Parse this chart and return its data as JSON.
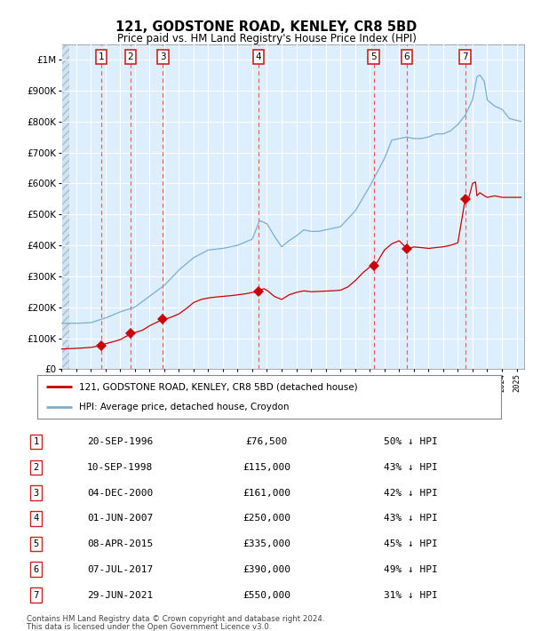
{
  "title": "121, GODSTONE ROAD, KENLEY, CR8 5BD",
  "subtitle": "Price paid vs. HM Land Registry's House Price Index (HPI)",
  "table_rows": [
    {
      "num": 1,
      "date": "20-SEP-1996",
      "price": "£76,500",
      "pct": "50% ↓ HPI"
    },
    {
      "num": 2,
      "date": "10-SEP-1998",
      "price": "£115,000",
      "pct": "43% ↓ HPI"
    },
    {
      "num": 3,
      "date": "04-DEC-2000",
      "price": "£161,000",
      "pct": "42% ↓ HPI"
    },
    {
      "num": 4,
      "date": "01-JUN-2007",
      "price": "£250,000",
      "pct": "43% ↓ HPI"
    },
    {
      "num": 5,
      "date": "08-APR-2015",
      "price": "£335,000",
      "pct": "45% ↓ HPI"
    },
    {
      "num": 6,
      "date": "07-JUL-2017",
      "price": "£390,000",
      "pct": "49% ↓ HPI"
    },
    {
      "num": 7,
      "date": "29-JUN-2021",
      "price": "£550,000",
      "pct": "31% ↓ HPI"
    }
  ],
  "legend_red": "121, GODSTONE ROAD, KENLEY, CR8 5BD (detached house)",
  "legend_blue": "HPI: Average price, detached house, Croydon",
  "footnote1": "Contains HM Land Registry data © Crown copyright and database right 2024.",
  "footnote2": "This data is licensed under the Open Government Licence v3.0.",
  "red_color": "#cc0000",
  "blue_color": "#7aadcf",
  "bg_color": "#ddeeff",
  "dashed_red": "#ff5555",
  "ylim_max": 1050000,
  "hpi_x": [
    1994.0,
    1995.0,
    1996.0,
    1997.0,
    1998.0,
    1999.0,
    2000.0,
    2001.0,
    2002.0,
    2003.0,
    2004.0,
    2005.0,
    2006.0,
    2007.0,
    2007.5,
    2008.0,
    2008.5,
    2009.0,
    2009.5,
    2010.0,
    2010.5,
    2011.0,
    2011.5,
    2012.0,
    2012.5,
    2013.0,
    2014.0,
    2015.0,
    2016.0,
    2016.5,
    2017.0,
    2017.5,
    2018.0,
    2018.5,
    2019.0,
    2019.5,
    2020.0,
    2020.5,
    2021.0,
    2021.5,
    2022.0,
    2022.3,
    2022.5,
    2022.8,
    2023.0,
    2023.5,
    2024.0,
    2024.5,
    2025.3
  ],
  "hpi_y": [
    148000,
    148000,
    150000,
    165000,
    185000,
    200000,
    235000,
    270000,
    320000,
    360000,
    385000,
    390000,
    400000,
    420000,
    480000,
    470000,
    430000,
    395000,
    415000,
    430000,
    450000,
    445000,
    445000,
    450000,
    455000,
    460000,
    510000,
    590000,
    680000,
    740000,
    745000,
    750000,
    745000,
    745000,
    750000,
    760000,
    760000,
    770000,
    790000,
    820000,
    870000,
    945000,
    950000,
    930000,
    870000,
    850000,
    840000,
    810000,
    800000
  ],
  "red_x": [
    1994.0,
    1995.0,
    1996.0,
    1996.75,
    1997.0,
    1997.5,
    1998.0,
    1998.75,
    1999.0,
    1999.5,
    2000.0,
    2000.92,
    2001.0,
    2001.5,
    2002.0,
    2002.5,
    2003.0,
    2003.5,
    2004.0,
    2004.5,
    2005.0,
    2005.5,
    2006.0,
    2006.5,
    2007.0,
    2007.42,
    2007.5,
    2007.8,
    2008.0,
    2008.5,
    2009.0,
    2009.5,
    2010.0,
    2010.5,
    2011.0,
    2011.5,
    2012.0,
    2012.5,
    2013.0,
    2013.5,
    2014.0,
    2014.5,
    2015.0,
    2015.27,
    2015.5,
    2016.0,
    2016.5,
    2017.0,
    2017.52,
    2017.8,
    2018.0,
    2018.5,
    2019.0,
    2019.5,
    2020.0,
    2020.5,
    2021.0,
    2021.5,
    2021.75,
    2022.0,
    2022.2,
    2022.3,
    2022.5,
    2022.8,
    2023.0,
    2023.5,
    2024.0,
    2024.5,
    2025.3
  ],
  "red_y": [
    65000,
    67000,
    70000,
    76500,
    82000,
    88000,
    95000,
    115000,
    118000,
    125000,
    140000,
    161000,
    160000,
    168000,
    178000,
    195000,
    215000,
    225000,
    230000,
    233000,
    235000,
    237000,
    240000,
    243000,
    248000,
    250000,
    255000,
    260000,
    255000,
    235000,
    225000,
    240000,
    248000,
    253000,
    250000,
    251000,
    252000,
    253000,
    255000,
    265000,
    285000,
    310000,
    330000,
    335000,
    345000,
    385000,
    405000,
    415000,
    390000,
    392000,
    395000,
    393000,
    390000,
    393000,
    395000,
    400000,
    408000,
    550000,
    555000,
    600000,
    605000,
    560000,
    570000,
    560000,
    555000,
    560000,
    555000,
    555000,
    555000
  ],
  "sale_years": [
    1996.708,
    1998.708,
    2000.922,
    2007.417,
    2015.271,
    2017.517,
    2021.496
  ],
  "sale_prices": [
    76500,
    115000,
    161000,
    250000,
    335000,
    390000,
    550000
  ],
  "sale_nums": [
    1,
    2,
    3,
    4,
    5,
    6,
    7
  ]
}
